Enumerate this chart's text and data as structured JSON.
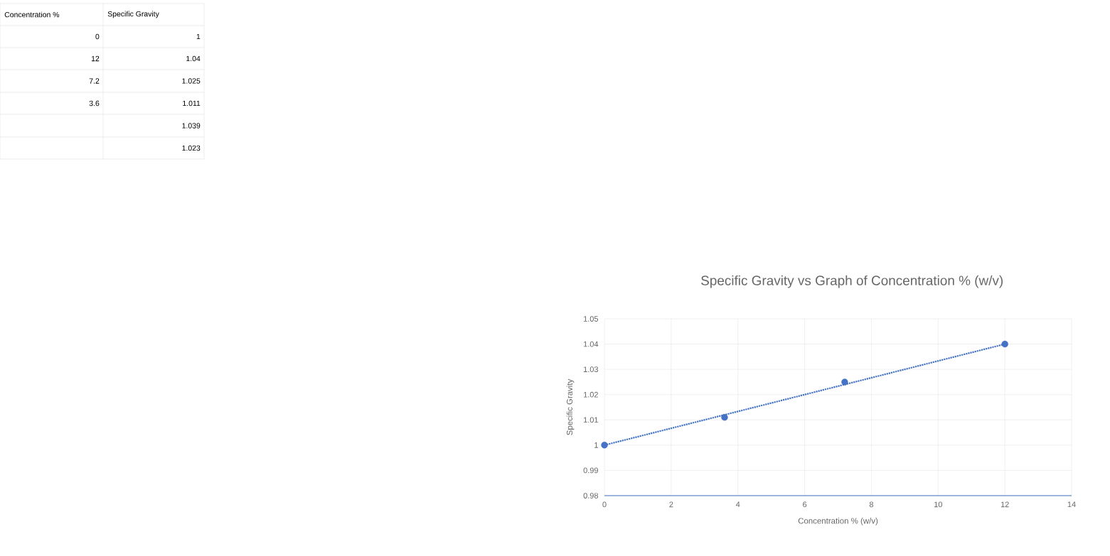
{
  "chart_data": [
    {
      "type": "other",
      "annotations": [
        "Concentration %",
        "Specific Gravity",
        "0",
        "1",
        "12",
        "1.04",
        "7.2",
        "1.025",
        "3.6",
        "1.011",
        "1.039",
        "1.023"
      ]
    },
    {
      "type": "scatter",
      "title": "Specific Gravity vs Graph of Concentration % (w/v)",
      "xlabel": "Concentration % (w/v)",
      "ylabel": "Specific Gravity",
      "xlim": [
        0,
        14
      ],
      "xticks": [
        0,
        2,
        4,
        6,
        8,
        10,
        12,
        14
      ],
      "ylim": [
        0.98,
        1.05
      ],
      "yticks": [
        0.98,
        0.99,
        1,
        1.01,
        1.02,
        1.03,
        1.04,
        1.05
      ],
      "grid": true,
      "series": [
        {
          "type": "scatter",
          "color": "#4472c4",
          "marker": "circle",
          "x": [
            0,
            12,
            7.2,
            3.6
          ],
          "values": [
            1,
            1.04,
            1.025,
            1.011
          ]
        },
        {
          "type": "line",
          "color": "#4472c4",
          "line_style": "dotted",
          "marker": "none",
          "x": [
            0,
            12
          ],
          "values": [
            1.0,
            1.04
          ]
        }
      ]
    }
  ]
}
